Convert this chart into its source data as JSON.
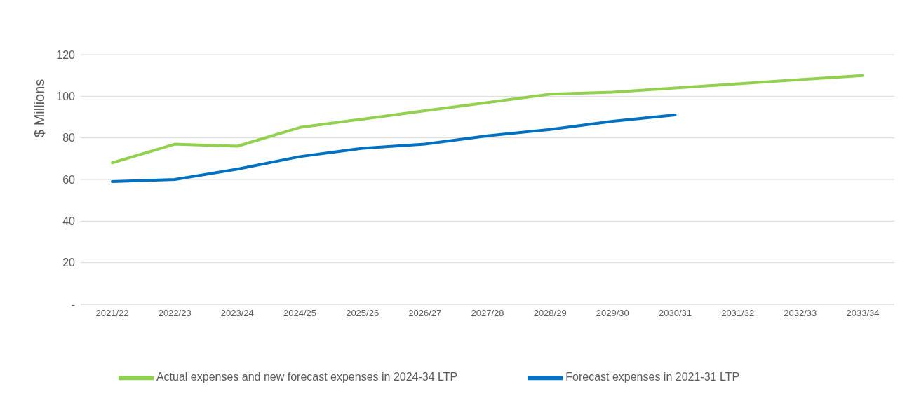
{
  "chart_data": {
    "type": "line",
    "ylabel": "$ Millions",
    "categories": [
      "2021/22",
      "2022/23",
      "2023/24",
      "2024/25",
      "2025/26",
      "2026/27",
      "2027/28",
      "2028/29",
      "2029/30",
      "2030/31",
      "2031/32",
      "2032/33",
      "2033/34"
    ],
    "series": [
      {
        "name": "Forecast expenses in 2021-31 LTP",
        "color": "#0070c0",
        "values": [
          59,
          60,
          65,
          71,
          75,
          77,
          81,
          84,
          88,
          91,
          null,
          null,
          null
        ]
      },
      {
        "name": "Actual expenses and new forecast expenses in 2024-34 LTP",
        "color": "#92d050",
        "values": [
          68,
          77,
          76,
          85,
          89,
          93,
          97,
          101,
          102,
          104,
          106,
          108,
          110
        ]
      }
    ],
    "ylim": [
      0,
      120
    ],
    "yticks": [
      {
        "value": 0,
        "label": "-"
      },
      20,
      40,
      60,
      80,
      100,
      120
    ],
    "grid": "y",
    "legend": "bottom",
    "marker": "none",
    "line_style": "solid"
  }
}
